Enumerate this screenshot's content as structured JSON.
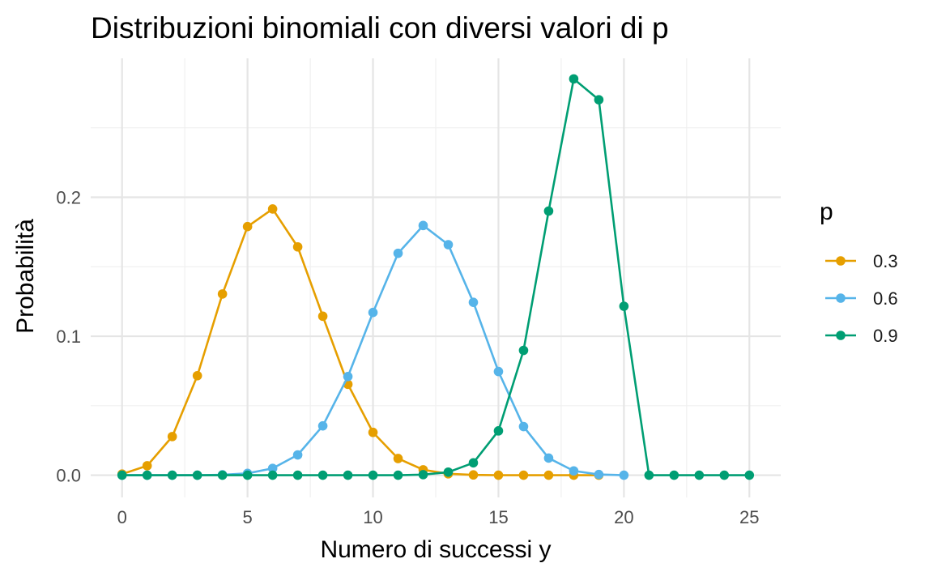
{
  "chart_data": {
    "type": "line",
    "title": "Distribuzioni binomiali con diversi valori di p",
    "xlabel": "Numero di successi y",
    "ylabel": "Probabilità",
    "xlim": [
      -1.25,
      26.25
    ],
    "ylim": [
      -0.016,
      0.3
    ],
    "x_ticks": [
      0,
      5,
      10,
      15,
      20,
      25
    ],
    "x_tick_labels": [
      "0",
      "5",
      "10",
      "15",
      "20",
      "25"
    ],
    "y_ticks": [
      0.0,
      0.1,
      0.2
    ],
    "y_tick_labels": [
      "0.0",
      "0.1",
      "0.2"
    ],
    "grid": true,
    "legend": {
      "title": "p",
      "position": "right"
    },
    "series": [
      {
        "name": "0.3",
        "color": "#E69F00",
        "x": [
          0,
          1,
          2,
          3,
          4,
          5,
          6,
          7,
          8,
          9,
          10,
          11,
          12,
          13,
          14,
          15,
          16,
          17,
          18,
          19
        ],
        "values": [
          0.0008,
          0.0068,
          0.0278,
          0.0716,
          0.1304,
          0.1789,
          0.1916,
          0.1643,
          0.1144,
          0.0654,
          0.0308,
          0.012,
          0.0039,
          0.001,
          0.0002,
          0.0,
          0.0,
          0.0,
          0.0,
          0.0
        ]
      },
      {
        "name": "0.6",
        "color": "#56B4E9",
        "x": [
          0,
          1,
          2,
          3,
          4,
          5,
          6,
          7,
          8,
          9,
          10,
          11,
          12,
          13,
          14,
          15,
          16,
          17,
          18,
          19,
          20
        ],
        "values": [
          0.0,
          0.0,
          0.0,
          0.0,
          0.0003,
          0.0013,
          0.0049,
          0.0146,
          0.0355,
          0.071,
          0.1171,
          0.1597,
          0.1797,
          0.1659,
          0.1244,
          0.0746,
          0.035,
          0.0123,
          0.0031,
          0.0005,
          0.0
        ]
      },
      {
        "name": "0.9",
        "color": "#009E73",
        "x": [
          0,
          1,
          2,
          3,
          4,
          5,
          6,
          7,
          8,
          9,
          10,
          11,
          12,
          13,
          14,
          15,
          16,
          17,
          18,
          19,
          20,
          21,
          22,
          23,
          24,
          25
        ],
        "values": [
          0.0,
          0.0,
          0.0,
          0.0,
          0.0,
          0.0,
          0.0,
          0.0,
          0.0,
          0.0,
          0.0,
          0.0,
          0.0004,
          0.0022,
          0.0089,
          0.0319,
          0.0898,
          0.1901,
          0.2852,
          0.2702,
          0.1216,
          0.0,
          0.0,
          0.0,
          0.0,
          0.0
        ]
      }
    ]
  }
}
